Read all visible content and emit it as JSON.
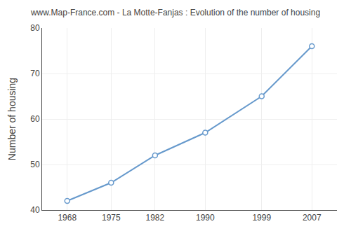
{
  "chart_data": {
    "type": "line",
    "title": "www.Map-France.com - La Motte-Fanjas : Evolution of the number of housing",
    "ylabel": "Number of housing",
    "x": [
      1968,
      1975,
      1982,
      1990,
      1999,
      2007
    ],
    "values": [
      42,
      46,
      52,
      57,
      65,
      76
    ],
    "xlim": [
      1964,
      2011
    ],
    "ylim": [
      40,
      80
    ],
    "xticks": [
      1968,
      1975,
      1982,
      1990,
      1999,
      2007
    ],
    "yticks": [
      40,
      50,
      60,
      70,
      80
    ],
    "color": "#6699cc",
    "marker": "o",
    "grid": true
  }
}
